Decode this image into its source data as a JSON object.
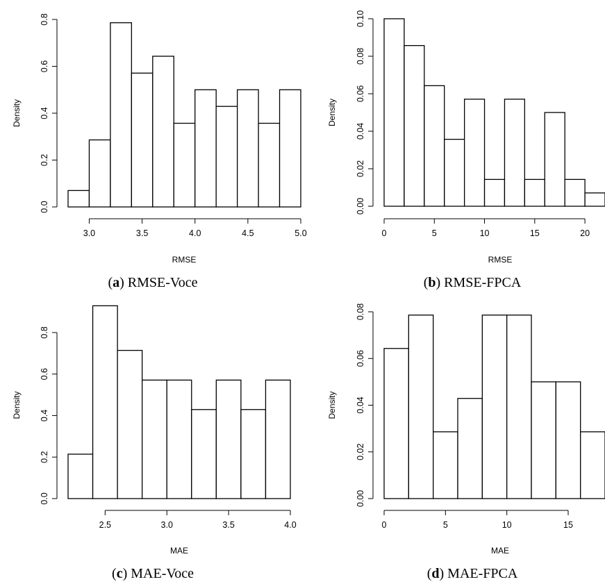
{
  "chart_data": [
    {
      "type": "bar",
      "subtitle_letter": "a",
      "subtitle_text": "RMSE-Voce",
      "xlabel": "RMSE",
      "ylabel": "Density",
      "bin_edges": [
        2.8,
        3.0,
        3.2,
        3.4,
        3.6,
        3.8,
        4.0,
        4.2,
        4.4,
        4.6,
        4.8,
        5.0
      ],
      "values": [
        0.07,
        0.286,
        0.786,
        0.571,
        0.643,
        0.357,
        0.5,
        0.429,
        0.5,
        0.357,
        0.5
      ],
      "xlim": [
        2.8,
        5.0
      ],
      "ylim": [
        0,
        0.8
      ],
      "x_ticks": [
        "3.0",
        "3.5",
        "4.0",
        "4.5",
        "5.0"
      ],
      "y_ticks": [
        "0.0",
        "0.2",
        "0.4",
        "0.6",
        "0.8"
      ]
    },
    {
      "type": "bar",
      "subtitle_letter": "b",
      "subtitle_text": "RMSE-FPCA",
      "xlabel": "RMSE",
      "ylabel": "Density",
      "bin_edges": [
        0,
        2,
        4,
        6,
        8,
        10,
        12,
        14,
        16,
        18,
        20,
        22
      ],
      "values": [
        0.1,
        0.0857,
        0.0643,
        0.0357,
        0.0571,
        0.0143,
        0.0571,
        0.0143,
        0.05,
        0.0143,
        0.0071
      ],
      "xlim": [
        0,
        22
      ],
      "ylim": [
        0,
        0.1
      ],
      "x_ticks": [
        "0",
        "5",
        "10",
        "15",
        "20"
      ],
      "y_ticks": [
        "0.00",
        "0.02",
        "0.04",
        "0.06",
        "0.08",
        "0.10"
      ]
    },
    {
      "type": "bar",
      "subtitle_letter": "c",
      "subtitle_text": "MAE-Voce",
      "xlabel": "MAE",
      "ylabel": "Density",
      "bin_edges": [
        2.2,
        2.4,
        2.6,
        2.8,
        3.0,
        3.2,
        3.4,
        3.6,
        3.8,
        4.0
      ],
      "values": [
        0.214,
        0.929,
        0.714,
        0.571,
        0.571,
        0.429,
        0.571,
        0.429,
        0.571
      ],
      "xlim": [
        2.2,
        4.0
      ],
      "ylim": [
        0,
        0.9
      ],
      "x_ticks": [
        "2.5",
        "3.0",
        "3.5",
        "4.0"
      ],
      "y_ticks": [
        "0.0",
        "0.2",
        "0.4",
        "0.6",
        "0.8"
      ]
    },
    {
      "type": "bar",
      "subtitle_letter": "d",
      "subtitle_text": "MAE-FPCA",
      "xlabel": "MAE",
      "ylabel": "Density",
      "bin_edges": [
        0,
        2,
        4,
        6,
        8,
        10,
        12,
        14,
        16,
        18
      ],
      "values": [
        0.0643,
        0.0786,
        0.0286,
        0.0429,
        0.0786,
        0.0786,
        0.05,
        0.05,
        0.0286
      ],
      "xlim": [
        0,
        18
      ],
      "ylim": [
        0,
        0.08
      ],
      "x_ticks": [
        "0",
        "5",
        "10",
        "15"
      ],
      "y_ticks": [
        "0.00",
        "0.02",
        "0.04",
        "0.06",
        "0.08"
      ]
    }
  ]
}
